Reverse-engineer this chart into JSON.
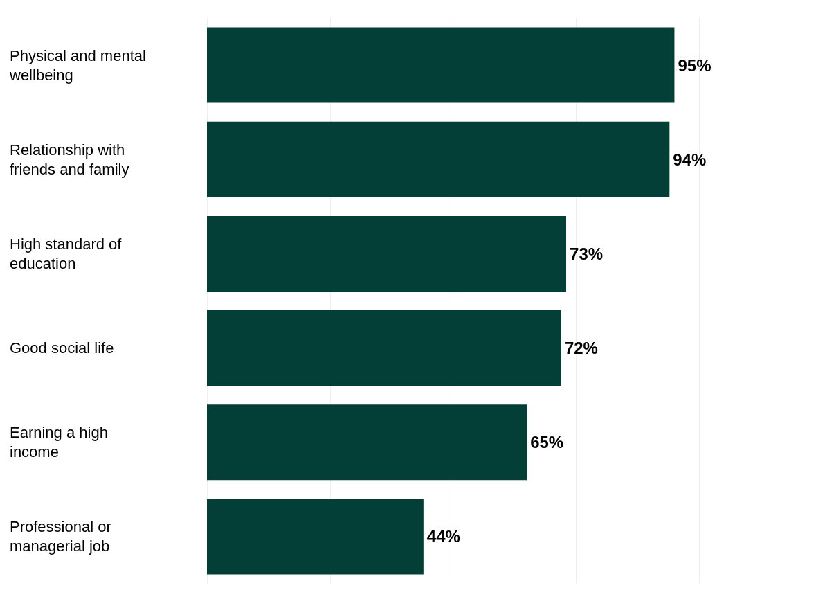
{
  "chart_data": {
    "type": "bar",
    "orientation": "horizontal",
    "categories": [
      "Physical and mental wellbeing",
      "Relationship with friends and family",
      "High standard of education",
      "Good social life",
      "Earning a high income",
      "Professional or managerial job"
    ],
    "values": [
      95,
      94,
      73,
      72,
      65,
      44
    ],
    "value_labels": [
      "95%",
      "94%",
      "73%",
      "72%",
      "65%",
      "44%"
    ],
    "color": "#033f37",
    "xlim": [
      0,
      100
    ],
    "xticks": [
      0,
      25,
      50,
      75,
      100
    ],
    "grid": "x",
    "tick_labels": "y"
  }
}
